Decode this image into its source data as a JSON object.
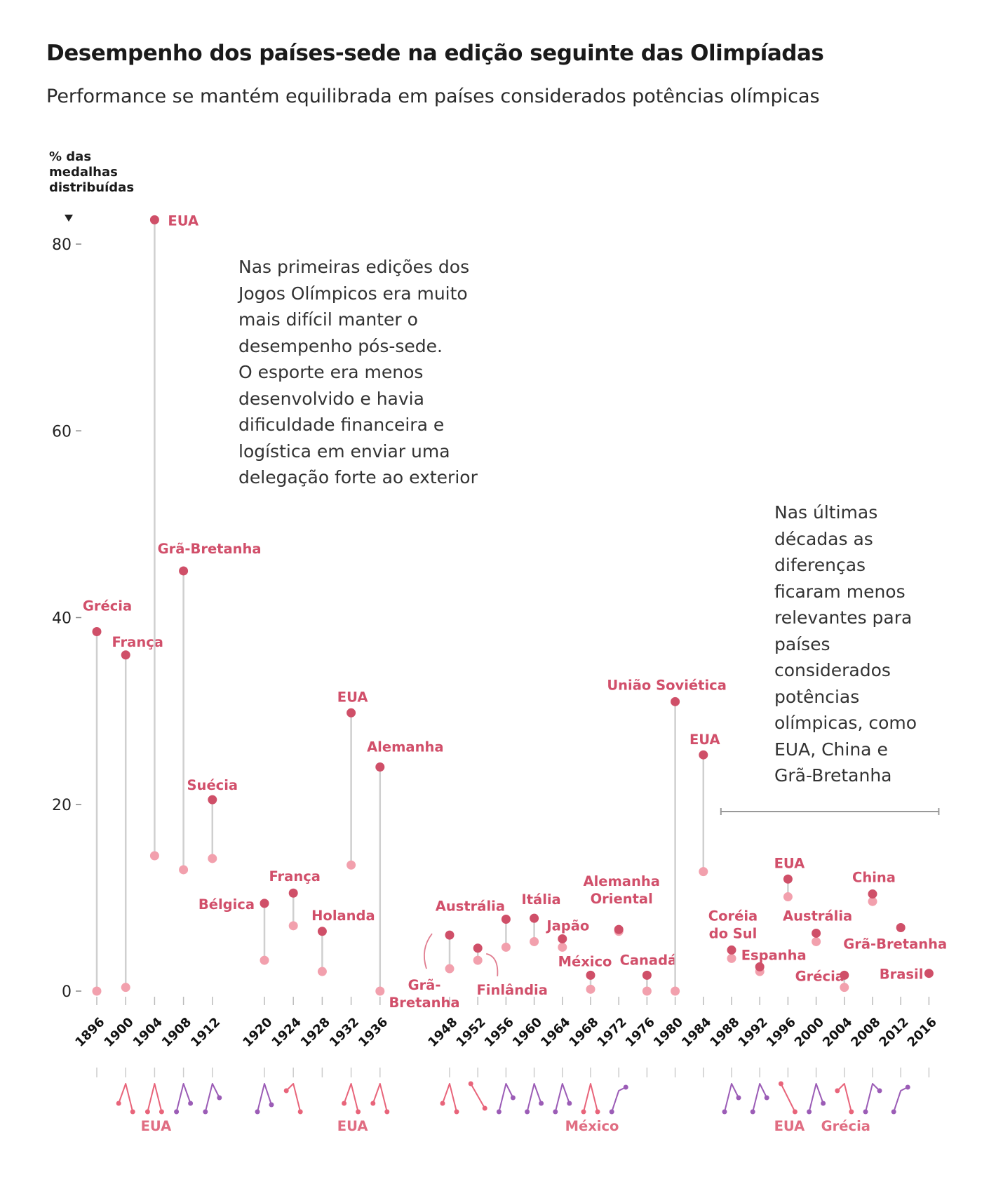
{
  "header": {
    "title": "Desempenho dos países-sede na edição seguinte das Olimpíadas",
    "subtitle": "Performance se mantém equilibrada em países considerados potências olímpicas"
  },
  "notes": {
    "early": [
      "Nas primeiras edições dos",
      "Jogos Olímpicos era muito",
      "mais difícil manter o",
      "desempenho pós-sede.",
      "O esporte era menos",
      "desenvolvido e havia",
      "dificuldade financeira e",
      "logística em enviar uma",
      "delegação forte ao exterior"
    ],
    "recent": [
      "Nas últimas",
      "décadas as",
      "diferenças",
      "ficaram menos",
      "relevantes para",
      "países",
      "considerados",
      "potências",
      "olímpicas, como",
      "EUA, China e",
      "Grã-Bretanha"
    ]
  },
  "colors": {
    "host": "#cf4f68",
    "next": "#f2a0ad",
    "connector": "#cfcfcf",
    "label": "#d14f6a",
    "purple": "#9b5cb6",
    "axis": "#888888"
  },
  "chart_data": {
    "type": "dumbbell",
    "title": "Desempenho dos países-sede na edição seguinte das Olimpíadas",
    "ylabel": [
      "% das",
      "medalhas",
      "distribuídas"
    ],
    "ylim": [
      0,
      85
    ],
    "yticks": [
      0,
      20,
      40,
      60,
      80
    ],
    "years": [
      "1896",
      "1900",
      "1904",
      "1908",
      "1912",
      "1920",
      "1924",
      "1928",
      "1932",
      "1936",
      "1948",
      "1952",
      "1956",
      "1960",
      "1964",
      "1968",
      "1972",
      "1976",
      "1980",
      "1984",
      "1988",
      "1992",
      "1996",
      "2000",
      "2004",
      "2008",
      "2012",
      "2016"
    ],
    "points": [
      {
        "year": "1896",
        "country": "Grécia",
        "host": 38.5,
        "next": 0.0
      },
      {
        "year": "1900",
        "country": "França",
        "host": 36.0,
        "next": 0.4
      },
      {
        "year": "1904",
        "country": "EUA",
        "host": 82.6,
        "next": 14.5
      },
      {
        "year": "1908",
        "country": "Grã-Bretanha",
        "host": 45.0,
        "next": 13.0
      },
      {
        "year": "1912",
        "country": "Suécia",
        "host": 20.5,
        "next": 14.2
      },
      {
        "year": "1920",
        "country": "Bélgica",
        "host": 9.4,
        "next": 3.3
      },
      {
        "year": "1924",
        "country": "França",
        "host": 10.5,
        "next": 7.0
      },
      {
        "year": "1928",
        "country": "Holanda",
        "host": 6.4,
        "next": 2.1
      },
      {
        "year": "1932",
        "country": "EUA",
        "host": 29.8,
        "next": 13.5
      },
      {
        "year": "1936",
        "country": "Alemanha",
        "host": 24.0,
        "next": 0.0
      },
      {
        "year": "1948",
        "country": "Grã-Bretanha",
        "host": 6.0,
        "next": 2.4
      },
      {
        "year": "1952",
        "country": "Finlândia",
        "host": 4.6,
        "next": 3.3
      },
      {
        "year": "1956",
        "country": "Austrália",
        "host": 7.7,
        "next": 4.7
      },
      {
        "year": "1960",
        "country": "Itália",
        "host": 7.8,
        "next": 5.3
      },
      {
        "year": "1964",
        "country": "Japão",
        "host": 5.6,
        "next": 4.7
      },
      {
        "year": "1968",
        "country": "México",
        "host": 1.7,
        "next": 0.2
      },
      {
        "year": "1972",
        "country": "Alemanha Oriental",
        "host": 6.6,
        "next": 6.4
      },
      {
        "year": "1976",
        "country": "Canadá",
        "host": 1.7,
        "next": 0.0
      },
      {
        "year": "1980",
        "country": "União Soviética",
        "host": 31.0,
        "next": 0.0
      },
      {
        "year": "1984",
        "country": "EUA",
        "host": 25.3,
        "next": 12.8
      },
      {
        "year": "1988",
        "country": "Coréia do Sul",
        "host": 4.4,
        "next": 3.5
      },
      {
        "year": "1992",
        "country": "Espanha",
        "host": 2.6,
        "next": 2.1
      },
      {
        "year": "1996",
        "country": "EUA",
        "host": 12.0,
        "next": 10.1
      },
      {
        "year": "2000",
        "country": "Austrália",
        "host": 6.2,
        "next": 5.3
      },
      {
        "year": "2004",
        "country": "Grécia",
        "host": 1.7,
        "next": 0.4
      },
      {
        "year": "2008",
        "country": "China",
        "host": 10.4,
        "next": 9.6
      },
      {
        "year": "2012",
        "country": "Grã-Bretanha",
        "host": 6.8,
        "next": null
      },
      {
        "year": "2016",
        "country": "Brasil",
        "host": 1.9,
        "next": null
      }
    ],
    "legend_bottom": [
      {
        "year": "1904",
        "text": "EUA"
      },
      {
        "year": "1932",
        "text": "EUA"
      },
      {
        "year": "1968",
        "text": "México"
      },
      {
        "year": "1996",
        "text": "EUA"
      },
      {
        "year": "2004",
        "text": "Grécia"
      }
    ]
  }
}
